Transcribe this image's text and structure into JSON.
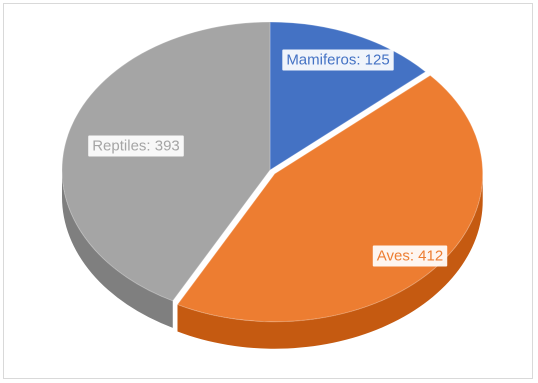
{
  "chart_data": {
    "type": "pie",
    "title": "",
    "legend": "none",
    "slices": [
      {
        "label": "Mamiferos",
        "value": 125,
        "color": "#4472c4",
        "side": "#2f5597",
        "labelColor": "#4472c4",
        "display": "Mamiferos: 125"
      },
      {
        "label": "Aves",
        "value": 412,
        "color": "#ed7d31",
        "side": "#c55a11",
        "labelColor": "#ed7d31",
        "display": "Aves: 412"
      },
      {
        "label": "Reptiles",
        "value": 393,
        "color": "#a5a5a5",
        "side": "#7f7f7f",
        "labelColor": "#a5a5a5",
        "display": "Reptiles: 393"
      }
    ]
  }
}
